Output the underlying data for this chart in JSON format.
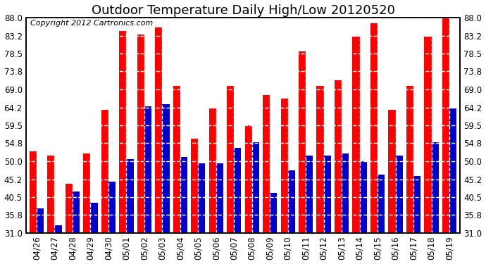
{
  "title": "Outdoor Temperature Daily High/Low 20120520",
  "copyright": "Copyright 2012 Cartronics.com",
  "dates": [
    "04/26",
    "04/27",
    "04/28",
    "04/29",
    "04/30",
    "05/01",
    "05/02",
    "05/03",
    "05/04",
    "05/05",
    "05/06",
    "05/07",
    "05/08",
    "05/09",
    "05/10",
    "05/11",
    "05/12",
    "05/13",
    "05/14",
    "05/15",
    "05/16",
    "05/17",
    "05/18",
    "05/19"
  ],
  "highs": [
    52.5,
    51.5,
    44.0,
    52.0,
    63.5,
    84.5,
    83.5,
    85.5,
    70.0,
    56.0,
    64.0,
    70.0,
    59.5,
    67.5,
    66.5,
    79.0,
    70.0,
    71.5,
    83.0,
    86.5,
    63.5,
    70.0,
    83.0,
    88.0
  ],
  "lows": [
    37.5,
    33.0,
    42.0,
    39.0,
    44.5,
    50.5,
    64.5,
    65.0,
    51.0,
    49.5,
    49.5,
    53.5,
    55.0,
    41.5,
    47.5,
    51.5,
    51.5,
    52.0,
    50.0,
    46.5,
    51.5,
    46.0,
    55.0,
    64.0
  ],
  "high_color": "#ff0000",
  "low_color": "#0000cc",
  "bg_color": "#ffffff",
  "grid_color": "#c8c8c8",
  "yticks": [
    31.0,
    35.8,
    40.5,
    45.2,
    50.0,
    54.8,
    59.5,
    64.2,
    69.0,
    73.8,
    78.5,
    83.2,
    88.0
  ],
  "ymin": 31.0,
  "ymax": 88.0,
  "title_fontsize": 13,
  "copyright_fontsize": 8,
  "tick_fontsize": 8.5
}
